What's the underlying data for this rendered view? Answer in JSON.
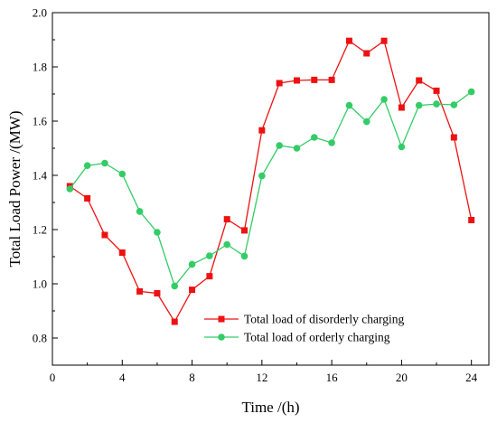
{
  "chart_data": {
    "type": "line",
    "xlabel": "Time /(h)",
    "ylabel": "Total Load Power  /(MW)",
    "xlim": [
      0,
      25
    ],
    "ylim": [
      0.7,
      2.0
    ],
    "xticks": [
      0,
      4,
      8,
      12,
      16,
      20,
      24
    ],
    "yticks": [
      0.8,
      1.0,
      1.2,
      1.4,
      1.6,
      1.8,
      2.0
    ],
    "x": [
      1,
      2,
      3,
      4,
      5,
      6,
      7,
      8,
      9,
      10,
      11,
      12,
      13,
      14,
      15,
      16,
      17,
      18,
      19,
      20,
      21,
      22,
      23,
      24
    ],
    "grid": false,
    "legend_position": "lower-right",
    "series": [
      {
        "name": "Total load of disorderly charging",
        "color": "#ee1111",
        "marker": "square",
        "values": [
          1.36,
          1.315,
          1.18,
          1.115,
          0.972,
          0.965,
          0.86,
          0.978,
          1.028,
          1.238,
          1.197,
          1.566,
          1.74,
          1.75,
          1.752,
          1.752,
          1.896,
          1.85,
          1.896,
          1.65,
          1.75,
          1.712,
          1.54,
          1.235
        ]
      },
      {
        "name": "Total load of orderly charging",
        "color": "#33cc66",
        "marker": "circle",
        "values": [
          1.35,
          1.436,
          1.445,
          1.405,
          1.267,
          1.19,
          0.992,
          1.072,
          1.103,
          1.145,
          1.102,
          1.398,
          1.51,
          1.5,
          1.54,
          1.52,
          1.658,
          1.598,
          1.68,
          1.505,
          1.658,
          1.663,
          1.66,
          1.708
        ]
      }
    ]
  }
}
